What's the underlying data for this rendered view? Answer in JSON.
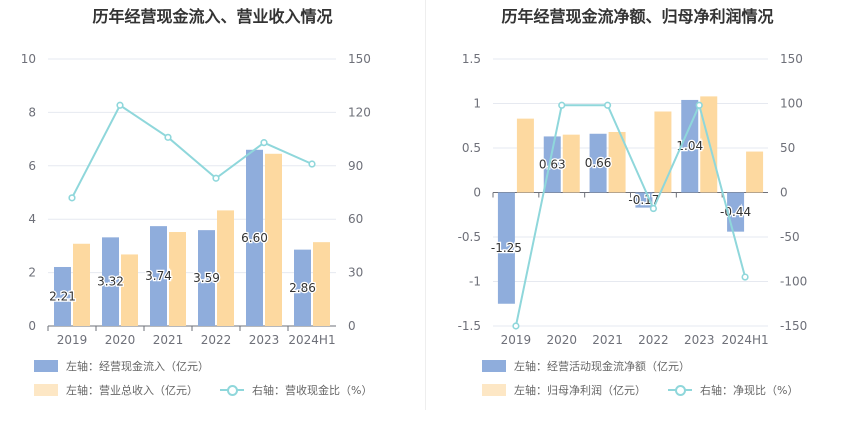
{
  "charts": [
    {
      "title": "历年经营现金流入、营业收入情况",
      "legend": [
        {
          "label": "左轴：经营现金流入（亿元）",
          "kind": "bar"
        },
        {
          "label": "左轴：营业总收入（亿元）",
          "kind": "bar"
        },
        {
          "label": "右轴：营收现金比（%）",
          "kind": "line"
        }
      ]
    },
    {
      "title": "历年经营现金流净额、归母净利润情况",
      "legend": [
        {
          "label": "左轴：经营活动现金流净额（亿元）",
          "kind": "bar"
        },
        {
          "label": "左轴：归母净利润（亿元）",
          "kind": "bar"
        },
        {
          "label": "右轴：净现比（%）",
          "kind": "line"
        }
      ]
    }
  ],
  "colors": {
    "bar1": "#8faddc",
    "bar2": "#fdd9a0",
    "line": "#8fd7db",
    "grid": "#e6e9f0",
    "axis": "#c8c8c8",
    "tick": "#6e7079",
    "label": "#333333"
  },
  "chart_data": [
    {
      "type": "bar+line",
      "title": "历年经营现金流入、营业收入情况",
      "categories": [
        "2019",
        "2020",
        "2021",
        "2022",
        "2023",
        "2024H1"
      ],
      "left_axis": {
        "min": 0,
        "max": 10,
        "ticks": [
          "0",
          "2",
          "4",
          "6",
          "8",
          "10"
        ],
        "tick_values": [
          0,
          2,
          4,
          6,
          8,
          10
        ]
      },
      "right_axis": {
        "min": 0,
        "max": 150,
        "ticks": [
          "0",
          "30",
          "60",
          "90",
          "120",
          "150"
        ],
        "tick_values": [
          0,
          30,
          60,
          90,
          120,
          150
        ]
      },
      "series": [
        {
          "name": "经营现金流入（亿元）",
          "type": "bar",
          "axis": "left",
          "values": [
            2.21,
            3.32,
            3.74,
            3.59,
            6.6,
            2.86
          ],
          "labels": [
            "2.21",
            "3.32",
            "3.74",
            "3.59",
            "6.60",
            "2.86"
          ]
        },
        {
          "name": "营业总收入（亿元）",
          "type": "bar",
          "axis": "left",
          "values": [
            3.08,
            2.68,
            3.52,
            4.33,
            6.45,
            3.14
          ]
        },
        {
          "name": "营收现金比（%）",
          "type": "line",
          "axis": "right",
          "values": [
            72,
            124,
            106,
            83,
            103,
            91
          ]
        }
      ]
    },
    {
      "type": "bar+line",
      "title": "历年经营现金流净额、归母净利润情况",
      "categories": [
        "2019",
        "2020",
        "2021",
        "2022",
        "2023",
        "2024H1"
      ],
      "left_axis": {
        "min": -1.5,
        "max": 1.5,
        "ticks": [
          "-1.5",
          "-1",
          "-0.5",
          "0",
          "0.5",
          "1",
          "1.5"
        ],
        "tick_values": [
          -1.5,
          -1,
          -0.5,
          0,
          0.5,
          1,
          1.5
        ]
      },
      "right_axis": {
        "min": -150,
        "max": 150,
        "ticks": [
          "-150",
          "-100",
          "-50",
          "0",
          "50",
          "100",
          "150"
        ],
        "tick_values": [
          -150,
          -100,
          -50,
          0,
          50,
          100,
          150
        ]
      },
      "series": [
        {
          "name": "经营活动现金流净额（亿元）",
          "type": "bar",
          "axis": "left",
          "values": [
            -1.25,
            0.63,
            0.66,
            -0.17,
            1.04,
            -0.44
          ],
          "labels": [
            "-1.25",
            "0.63",
            "0.66",
            "-0.17",
            "1.04",
            "-0.44"
          ]
        },
        {
          "name": "归母净利润（亿元）",
          "type": "bar",
          "axis": "left",
          "values": [
            0.83,
            0.65,
            0.68,
            0.91,
            1.08,
            0.46
          ]
        },
        {
          "name": "净现比（%）",
          "type": "line",
          "axis": "right",
          "values": [
            -150,
            98,
            98,
            -18,
            98,
            -95
          ]
        }
      ]
    }
  ]
}
